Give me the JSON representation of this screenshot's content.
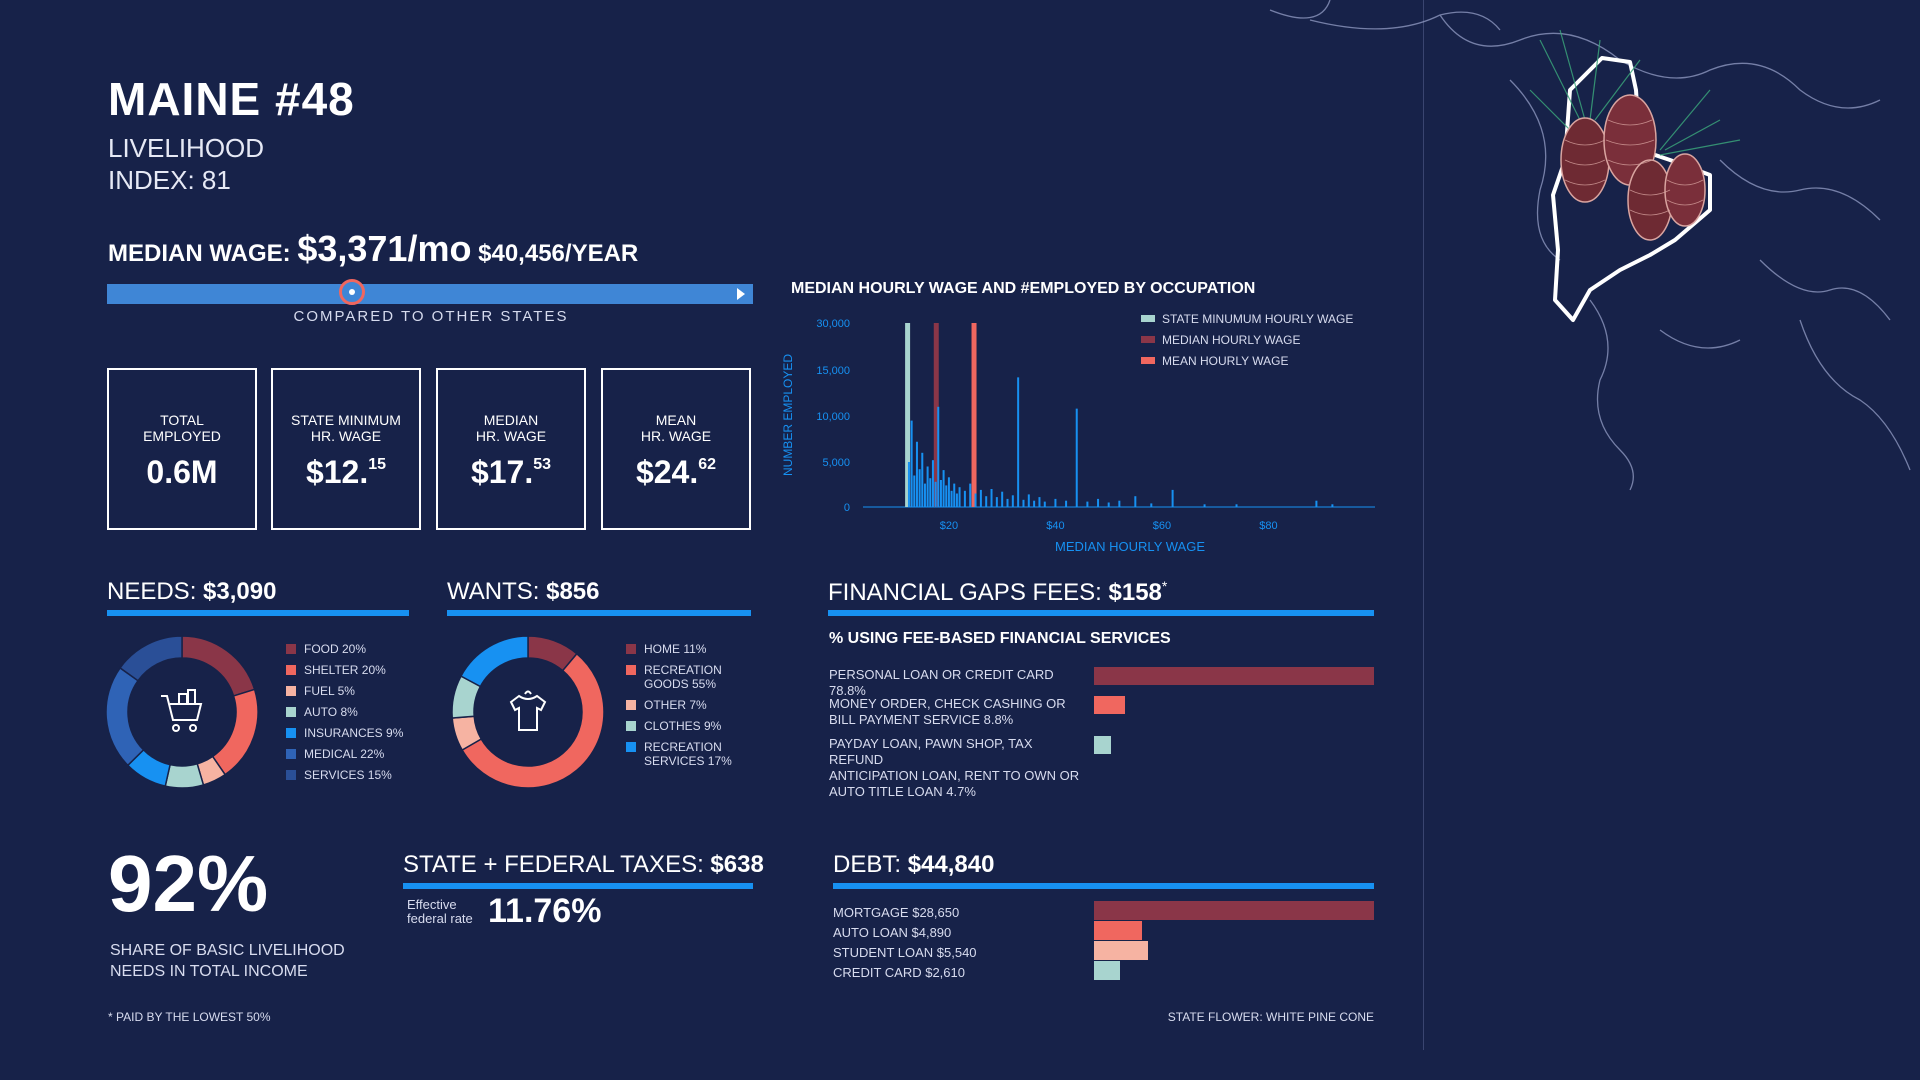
{
  "header": {
    "title": "MAINE #48",
    "subtitle_line1": "LIVELIHOOD",
    "subtitle_line2": "INDEX: 81"
  },
  "median_wage": {
    "label": "MEDIAN WAGE:",
    "monthly": "$3,371/mo",
    "yearly": "$40,456/YEAR",
    "compared_label": "COMPARED TO OTHER STATES",
    "rank_fraction": 0.38
  },
  "stats": [
    {
      "label": "TOTAL\nEMPLOYED",
      "value": "0.6M",
      "cents": ""
    },
    {
      "label": "STATE MINIMUM\nHR. WAGE",
      "value": "$12.",
      "cents": "15"
    },
    {
      "label": "MEDIAN\nHR. WAGE",
      "value": "$17.",
      "cents": "53"
    },
    {
      "label": "MEAN\nHR. WAGE",
      "value": "$24.",
      "cents": "62"
    }
  ],
  "needs": {
    "label": "NEEDS:",
    "value": "$3,090",
    "icon": "shopping-cart-icon"
  },
  "wants": {
    "label": "WANTS:",
    "value": "$856",
    "icon": "t-shirt-icon"
  },
  "fees": {
    "label": "FINANCIAL GAPS FEES:",
    "value": "$158",
    "mark": "*",
    "subtitle": "% USING FEE-BASED FINANCIAL SERVICES"
  },
  "share": {
    "value": "92%",
    "label_line1": "SHARE OF BASIC LIVELIHOOD",
    "label_line2": "NEEDS IN TOTAL INCOME"
  },
  "taxes": {
    "label": "STATE + FEDERAL TAXES:",
    "value": "$638",
    "rate_label_line1": "Effective",
    "rate_label_line2": "federal rate",
    "rate_value": "11.76%"
  },
  "debt": {
    "label": "DEBT:",
    "value": "$44,840"
  },
  "footnote": "* PAID BY THE LOWEST 50%",
  "state_flower": "STATE FLOWER: WHITE PINE CONE",
  "colors": {
    "bg": "#172249",
    "accent": "#1791f2",
    "dark_red": "#8a3648",
    "coral": "#f0675f",
    "peach": "#f6b3a2",
    "mint": "#a8d4cf",
    "blue": "#1791f2",
    "mid_blue": "#2f63b6",
    "navy_blue": "#2a4f97"
  },
  "chart_data": [
    {
      "type": "bar",
      "title": "MEDIAN HOURLY WAGE AND #EMPLOYED BY OCCUPATION",
      "xlabel": "MEDIAN HOURLY WAGE",
      "ylabel": "NUMBER EMPLOYED",
      "x_ticks": [
        "$20",
        "$40",
        "$60",
        "$80"
      ],
      "x_tick_values": [
        20,
        40,
        60,
        80
      ],
      "y_ticks": [
        "0",
        "5,000",
        "10,000",
        "15,000",
        "30,000"
      ],
      "xlim": [
        8,
        100
      ],
      "ylim": [
        0,
        30000
      ],
      "legend": [
        "STATE MINUMUM HOURLY WAGE",
        "MEDIAN HOURLY WAGE",
        "MEAN HOURLY WAGE"
      ],
      "reference_lines": [
        {
          "name": "STATE MINUMUM HOURLY WAGE",
          "x": 12.15,
          "color": "#a8d4cf"
        },
        {
          "name": "MEDIAN HOURLY WAGE",
          "x": 17.53,
          "color": "#8a3648"
        },
        {
          "name": "MEAN HOURLY WAGE",
          "x": 24.62,
          "color": "#f0675f"
        }
      ],
      "points": [
        {
          "x": 12.5,
          "y": 5000
        },
        {
          "x": 13.0,
          "y": 9500
        },
        {
          "x": 13.5,
          "y": 3500
        },
        {
          "x": 14.0,
          "y": 7200
        },
        {
          "x": 14.5,
          "y": 4200
        },
        {
          "x": 15.0,
          "y": 6000
        },
        {
          "x": 15.5,
          "y": 2600
        },
        {
          "x": 16.0,
          "y": 4500
        },
        {
          "x": 16.5,
          "y": 3200
        },
        {
          "x": 17.0,
          "y": 5200
        },
        {
          "x": 17.5,
          "y": 2800
        },
        {
          "x": 18.0,
          "y": 11000
        },
        {
          "x": 18.5,
          "y": 3000
        },
        {
          "x": 19.0,
          "y": 4100
        },
        {
          "x": 19.5,
          "y": 2400
        },
        {
          "x": 20.0,
          "y": 3300
        },
        {
          "x": 20.5,
          "y": 1800
        },
        {
          "x": 21.0,
          "y": 2600
        },
        {
          "x": 21.5,
          "y": 1500
        },
        {
          "x": 22.0,
          "y": 2200
        },
        {
          "x": 23.0,
          "y": 1800
        },
        {
          "x": 24.0,
          "y": 2600
        },
        {
          "x": 25.0,
          "y": 1500
        },
        {
          "x": 26.0,
          "y": 1900
        },
        {
          "x": 27.0,
          "y": 1200
        },
        {
          "x": 28.0,
          "y": 2000
        },
        {
          "x": 29.0,
          "y": 1100
        },
        {
          "x": 30.0,
          "y": 1700
        },
        {
          "x": 31.0,
          "y": 900
        },
        {
          "x": 32.0,
          "y": 1300
        },
        {
          "x": 33.0,
          "y": 14200
        },
        {
          "x": 34.0,
          "y": 800
        },
        {
          "x": 35.0,
          "y": 1400
        },
        {
          "x": 36.0,
          "y": 700
        },
        {
          "x": 37.0,
          "y": 1100
        },
        {
          "x": 38.0,
          "y": 600
        },
        {
          "x": 40.0,
          "y": 900
        },
        {
          "x": 42.0,
          "y": 700
        },
        {
          "x": 44.0,
          "y": 10800
        },
        {
          "x": 46.0,
          "y": 600
        },
        {
          "x": 48.0,
          "y": 900
        },
        {
          "x": 50.0,
          "y": 500
        },
        {
          "x": 52.0,
          "y": 700
        },
        {
          "x": 55.0,
          "y": 1200
        },
        {
          "x": 58.0,
          "y": 400
        },
        {
          "x": 62.0,
          "y": 1900
        },
        {
          "x": 68.0,
          "y": 300
        },
        {
          "x": 74.0,
          "y": 300
        },
        {
          "x": 89.0,
          "y": 700
        },
        {
          "x": 92.0,
          "y": 300
        }
      ]
    },
    {
      "type": "pie",
      "name": "NEEDS",
      "slices": [
        {
          "label": "FOOD 20%",
          "value": 20,
          "color": "#8a3648"
        },
        {
          "label": "SHELTER 20%",
          "value": 20,
          "color": "#f0675f"
        },
        {
          "label": "FUEL 5%",
          "value": 5,
          "color": "#f6b3a2"
        },
        {
          "label": "AUTO 8%",
          "value": 8,
          "color": "#a8d4cf"
        },
        {
          "label": "INSURANCES 9%",
          "value": 9,
          "color": "#1791f2"
        },
        {
          "label": "MEDICAL 22%",
          "value": 22,
          "color": "#2f63b6"
        },
        {
          "label": "SERVICES 15%",
          "value": 15,
          "color": "#2a4f97"
        }
      ]
    },
    {
      "type": "pie",
      "name": "WANTS",
      "slices": [
        {
          "label": "HOME 11%",
          "value": 11,
          "color": "#8a3648"
        },
        {
          "label": "RECREATION\nGOODS 55%",
          "value": 55,
          "color": "#f0675f"
        },
        {
          "label": "OTHER 7%",
          "value": 7,
          "color": "#f6b3a2"
        },
        {
          "label": "CLOTHES 9%",
          "value": 9,
          "color": "#a8d4cf"
        },
        {
          "label": "RECREATION\nSERVICES 17%",
          "value": 17,
          "color": "#1791f2"
        }
      ]
    },
    {
      "type": "bar",
      "name": "FEE-BASED FINANCIAL SERVICES",
      "orientation": "horizontal",
      "xlim": [
        0,
        78.8
      ],
      "bars": [
        {
          "label": "PERSONAL LOAN OR CREDIT CARD 78.8%",
          "value": 78.8,
          "color": "#8a3648"
        },
        {
          "label": "MONEY ORDER, CHECK CASHING OR\nBILL PAYMENT SERVICE 8.8%",
          "value": 8.8,
          "color": "#f0675f"
        },
        {
          "label": "PAYDAY LOAN, PAWN SHOP, TAX REFUND\nANTICIPATION LOAN, RENT TO OWN OR\nAUTO TITLE LOAN 4.7%",
          "value": 4.7,
          "color": "#a8d4cf"
        }
      ]
    },
    {
      "type": "bar",
      "name": "DEBT",
      "orientation": "horizontal",
      "xlim": [
        0,
        28650
      ],
      "bars": [
        {
          "label": "MORTGAGE $28,650",
          "value": 28650,
          "color": "#8a3648"
        },
        {
          "label": "AUTO LOAN $4,890",
          "value": 4890,
          "color": "#f0675f"
        },
        {
          "label": "STUDENT LOAN $5,540",
          "value": 5540,
          "color": "#f6b3a2"
        },
        {
          "label": "CREDIT CARD $2,610",
          "value": 2610,
          "color": "#a8d4cf"
        }
      ]
    }
  ]
}
